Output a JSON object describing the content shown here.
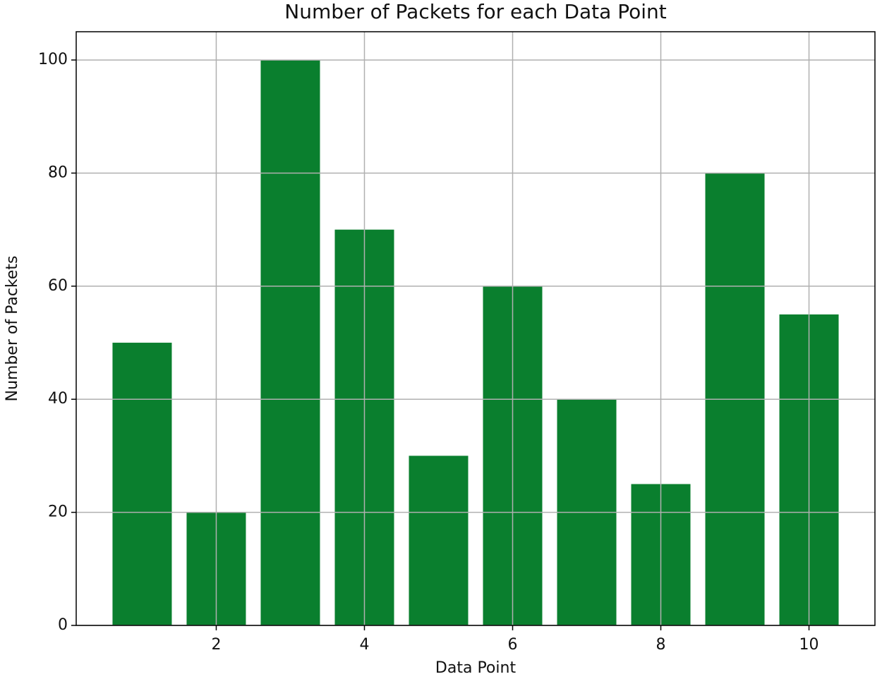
{
  "chart_data": {
    "type": "bar",
    "title": "Number of Packets for each Data Point",
    "x_label": "Data Point",
    "y_label": "Number of Packets",
    "x": [
      1,
      2,
      3,
      4,
      5,
      6,
      7,
      8,
      9,
      10
    ],
    "values": [
      50,
      20,
      100,
      70,
      30,
      60,
      40,
      25,
      80,
      55
    ],
    "color": "#0a7f2e",
    "xlim": [
      0.11,
      10.89
    ],
    "xticks": [
      2,
      4,
      6,
      8,
      10
    ],
    "ylim": [
      0,
      105
    ],
    "yticks": [
      0,
      20,
      40,
      60,
      80,
      100
    ],
    "grid": true
  }
}
